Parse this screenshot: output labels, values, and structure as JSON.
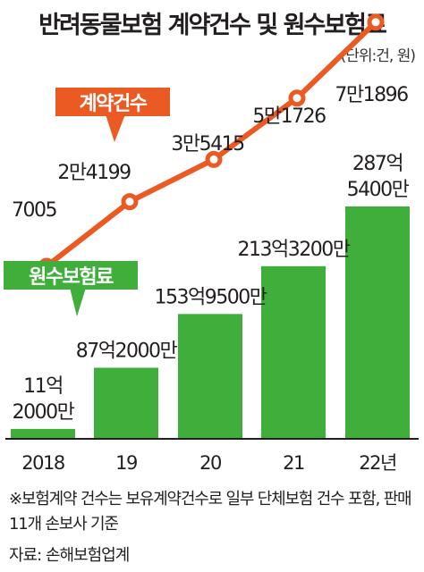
{
  "title": "반려동물보험 계약건수 및 원수보험료",
  "unit_note": "(단위:건, 원)",
  "chart_data": {
    "type": "bar+line",
    "categories": [
      "2018",
      "19",
      "20",
      "21",
      "22년"
    ],
    "series": [
      {
        "name": "계약건수",
        "kind": "line",
        "values": [
          7005,
          24199,
          35415,
          51726,
          71896
        ],
        "labels": [
          "7005",
          "2만4199",
          "3만5415",
          "5만1726",
          "7만1896"
        ],
        "color": "#ec5a24"
      },
      {
        "name": "원수보험료",
        "kind": "bar",
        "values": [
          11.2,
          87.2,
          153.95,
          213.32,
          287.54
        ],
        "labels": [
          [
            "11억",
            "2000만"
          ],
          [
            "87억2000만"
          ],
          [
            "153억9500만"
          ],
          [
            "213억3200만"
          ],
          [
            "287억",
            "5400만"
          ]
        ],
        "color": "#3fae3a"
      }
    ],
    "grid": false
  },
  "footnote": "※보험계약 건수는 보유계약건수로 일부 단체보험 건수 포함, 판매 11개 손보사 기준",
  "source": "자료: 손해보험업계"
}
